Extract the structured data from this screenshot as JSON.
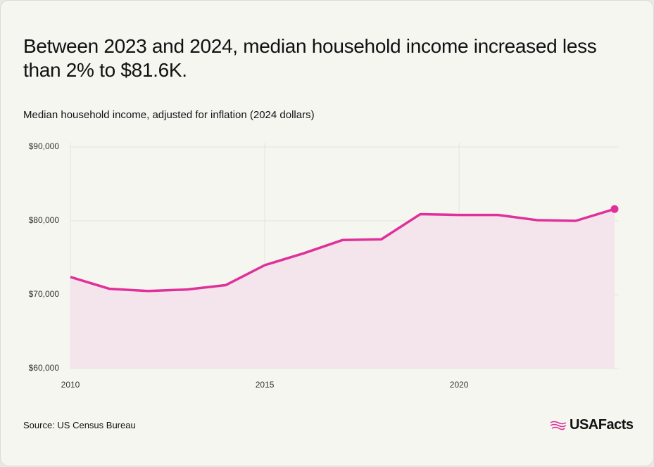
{
  "chart_data": {
    "type": "line",
    "title": "Between 2023 and 2024, median household income increased less than 2% to $81.6K.",
    "subtitle": "Median household income, adjusted for inflation (2024 dollars)",
    "source": "Source: US Census Bureau",
    "x": [
      2010,
      2011,
      2012,
      2013,
      2014,
      2015,
      2016,
      2017,
      2018,
      2019,
      2020,
      2021,
      2022,
      2023,
      2024
    ],
    "values": [
      72400,
      70800,
      70500,
      70700,
      71300,
      74000,
      75600,
      77400,
      77500,
      80900,
      80800,
      80800,
      80100,
      80000,
      81600
    ],
    "color": "#e0309a",
    "area_color": "#f4e4eb",
    "xlim": [
      2010,
      2024
    ],
    "xticks": [
      2010,
      2015,
      2020
    ],
    "ylim": [
      60000,
      90000
    ],
    "yticks": [
      {
        "value": 60000,
        "label": "$60,000"
      },
      {
        "value": 70000,
        "label": "$70,000"
      },
      {
        "value": 80000,
        "label": "$80,000"
      },
      {
        "value": 90000,
        "label": "$90,000"
      }
    ],
    "grid": true
  },
  "logo": "USAFacts"
}
